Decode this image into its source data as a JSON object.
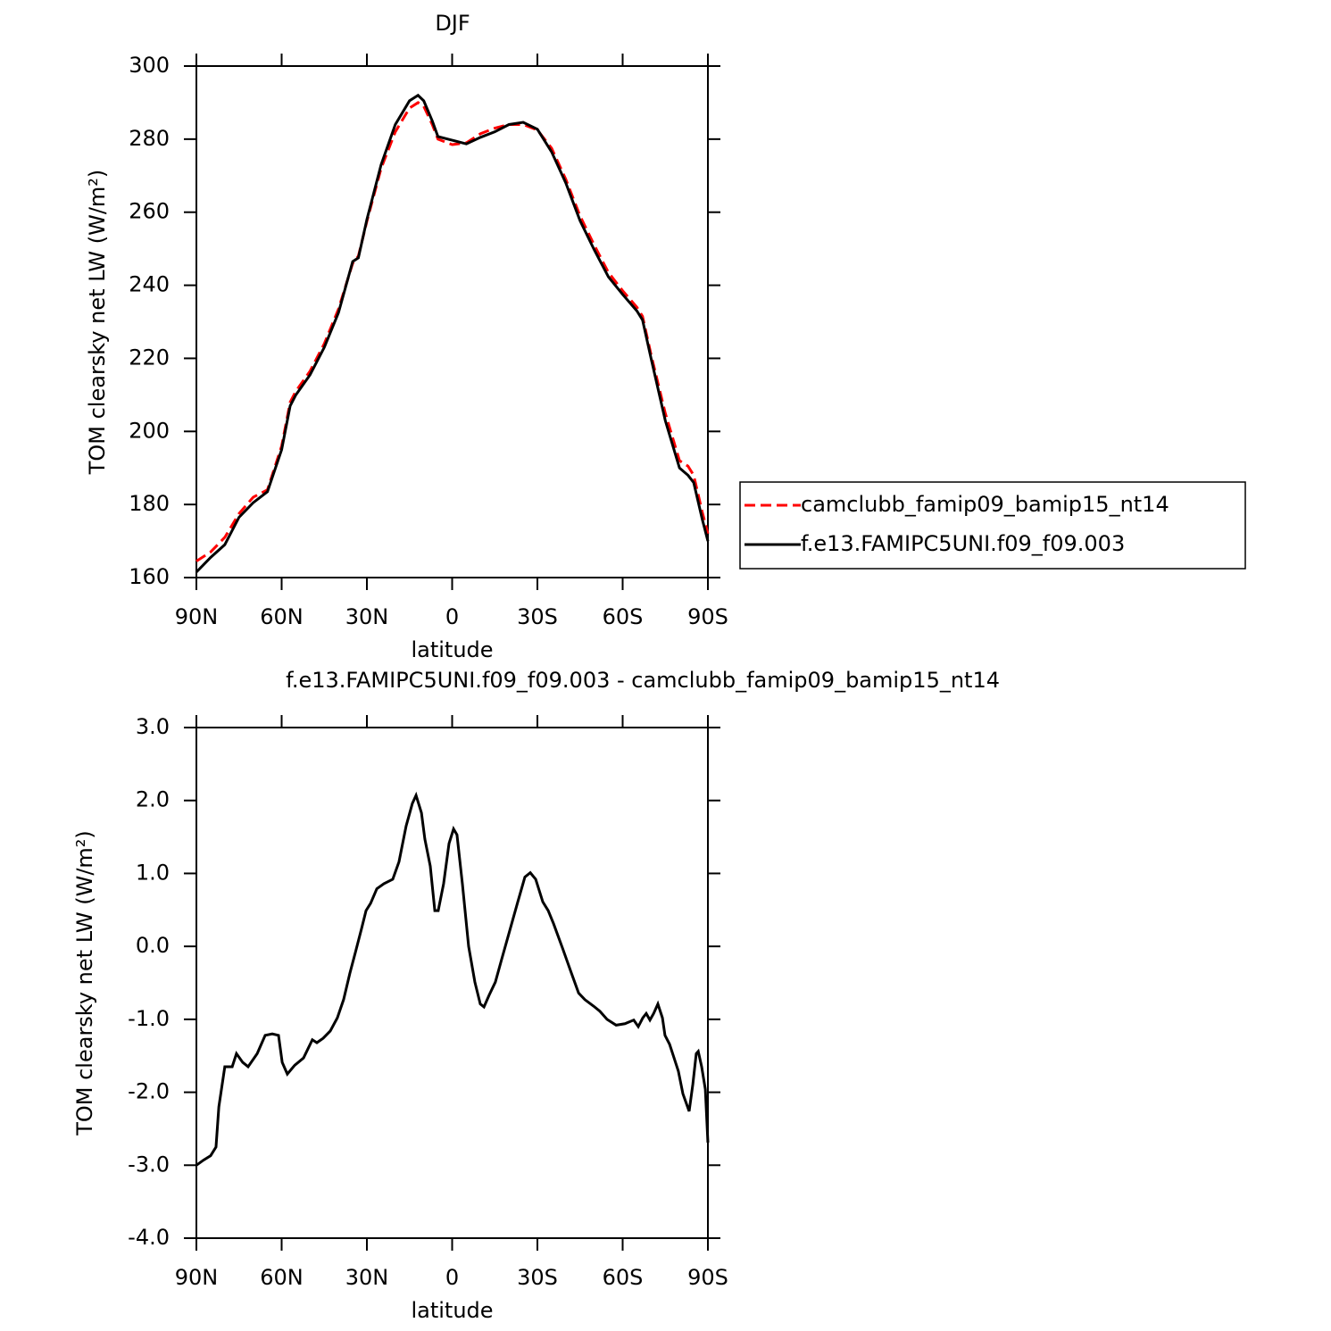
{
  "chart_data": [
    {
      "type": "line",
      "title": "DJF",
      "xlabel": "latitude",
      "ylabel": "TOM clearsky net LW (W/m²)",
      "x": [
        90,
        85,
        80,
        75,
        70,
        65,
        60,
        57,
        55,
        50,
        45,
        40,
        35,
        33,
        30,
        25,
        20,
        15,
        12,
        10,
        7,
        5,
        0,
        -5,
        -10,
        -15,
        -20,
        -25,
        -30,
        -35,
        -40,
        -45,
        -50,
        -55,
        -60,
        -65,
        -67,
        -70,
        -75,
        -80,
        -83,
        -85,
        -88,
        -90
      ],
      "series": [
        {
          "name": "camclubb_famip09_bamip15_nt14",
          "color": "#ff0000",
          "linestyle": "dashed",
          "values": [
            164.5,
            167,
            171,
            177.5,
            182,
            184,
            196,
            208,
            211,
            216.5,
            224,
            233.5,
            246,
            248,
            257.5,
            272,
            282,
            288.5,
            290,
            289,
            284,
            280,
            278.5,
            279,
            281.5,
            283,
            284,
            284,
            282.5,
            277.5,
            269,
            259,
            251,
            243.5,
            238.5,
            234,
            231.5,
            221,
            205,
            192,
            190.5,
            188,
            178,
            172
          ]
        },
        {
          "name": "f.e13.FAMIPC5UNI.f09_f09.003",
          "color": "#000000",
          "linestyle": "solid",
          "values": [
            161.5,
            165.5,
            169,
            176.5,
            180.5,
            183.5,
            195,
            207,
            210,
            215.5,
            223,
            232.5,
            246.5,
            247.5,
            258,
            273,
            284,
            290.5,
            292,
            290.5,
            285,
            280.7,
            279.7,
            278.7,
            280.5,
            282,
            284,
            284.6,
            282.7,
            276.5,
            268,
            257.7,
            249.7,
            242.3,
            237.5,
            233,
            230.5,
            220,
            203,
            190,
            188,
            186,
            176,
            170
          ]
        }
      ],
      "xlim": [
        90,
        -90
      ],
      "ylim": [
        160,
        300
      ],
      "xticks": [
        {
          "value": 90,
          "label": "90N"
        },
        {
          "value": 60,
          "label": "60N"
        },
        {
          "value": 30,
          "label": "30N"
        },
        0,
        {
          "value": -30,
          "label": "30S"
        },
        {
          "value": -60,
          "label": "60S"
        },
        {
          "value": -90,
          "label": "90S"
        }
      ],
      "yticks": [
        160,
        180,
        200,
        220,
        240,
        260,
        280,
        300
      ],
      "legend": "right"
    },
    {
      "type": "line",
      "title": "f.e13.FAMIPC5UNI.f09_f09.003 - camclubb_famip09_bamip15_nt14",
      "xlabel": "latitude",
      "ylabel": "TOM clearsky net LW (W/m²)",
      "x": [
        90,
        87.5,
        85,
        83.1,
        82.1,
        80,
        77.4,
        75.9,
        73.7,
        71.8,
        68.6,
        65.8,
        63.3,
        61.1,
        59.8,
        58,
        55.4,
        52.3,
        49.2,
        47.6,
        45.4,
        42.9,
        40.4,
        38.2,
        36,
        34.1,
        31.9,
        30.3,
        28.7,
        26.5,
        24,
        20.9,
        18.7,
        16.2,
        14,
        12.7,
        10.8,
        9.6,
        7.7,
        6.1,
        4.9,
        3,
        1.1,
        -0.5,
        -1.7,
        -3.6,
        -5.8,
        -8,
        -9.9,
        -11.2,
        -13,
        -15.2,
        -17.4,
        -20,
        -23.1,
        -25.6,
        -27.5,
        -29.4,
        -31.9,
        -33.8,
        -35.7,
        -38.8,
        -42,
        -44.5,
        -46.7,
        -49.8,
        -52,
        -54.5,
        -57.7,
        -60.8,
        -63.9,
        -65.5,
        -67.1,
        -68.3,
        -69.6,
        -70.9,
        -72.4,
        -74,
        -74.9,
        -76.5,
        -78.1,
        -79.6,
        -81.2,
        -83.4,
        -84.7,
        -85.9,
        -86.6,
        -87.8,
        -89.1,
        -90
      ],
      "series": [
        {
          "color": "#000000",
          "linestyle": "solid",
          "values": [
            -3.0,
            -2.93,
            -2.87,
            -2.75,
            -2.2,
            -1.65,
            -1.65,
            -1.47,
            -1.59,
            -1.65,
            -1.47,
            -1.22,
            -1.2,
            -1.22,
            -1.59,
            -1.75,
            -1.63,
            -1.53,
            -1.28,
            -1.32,
            -1.26,
            -1.16,
            -0.98,
            -0.73,
            -0.37,
            -0.09,
            0.24,
            0.49,
            0.59,
            0.79,
            0.86,
            0.92,
            1.16,
            1.65,
            1.96,
            2.07,
            1.83,
            1.47,
            1.1,
            0.49,
            0.49,
            0.86,
            1.41,
            1.61,
            1.53,
            0.86,
            0.0,
            -0.49,
            -0.79,
            -0.83,
            -0.67,
            -0.49,
            -0.18,
            0.18,
            0.61,
            0.95,
            1.01,
            0.92,
            0.61,
            0.49,
            0.31,
            -0.02,
            -0.37,
            -0.64,
            -0.73,
            -0.82,
            -0.89,
            -1.0,
            -1.08,
            -1.06,
            -1.01,
            -1.1,
            -0.98,
            -0.92,
            -1.01,
            -0.92,
            -0.79,
            -0.98,
            -1.22,
            -1.34,
            -1.53,
            -1.71,
            -2.02,
            -2.26,
            -1.89,
            -1.47,
            -1.44,
            -1.65,
            -1.96,
            -2.69
          ]
        }
      ],
      "xlim": [
        90,
        -90
      ],
      "ylim": [
        -4,
        3
      ],
      "xticks": [
        {
          "value": 90,
          "label": "90N"
        },
        {
          "value": 60,
          "label": "60N"
        },
        {
          "value": 30,
          "label": "30N"
        },
        0,
        {
          "value": -30,
          "label": "30S"
        },
        {
          "value": -60,
          "label": "60S"
        },
        {
          "value": -90,
          "label": "90S"
        }
      ],
      "yticks": [
        {
          "value": -4,
          "label": "-4.0"
        },
        {
          "value": -3,
          "label": "-3.0"
        },
        {
          "value": -2,
          "label": "-2.0"
        },
        {
          "value": -1,
          "label": "-1.0"
        },
        {
          "value": 0,
          "label": "0.0"
        },
        {
          "value": 1,
          "label": "1.0"
        },
        {
          "value": 2,
          "label": "2.0"
        },
        {
          "value": 3,
          "label": "3.0"
        }
      ]
    }
  ]
}
